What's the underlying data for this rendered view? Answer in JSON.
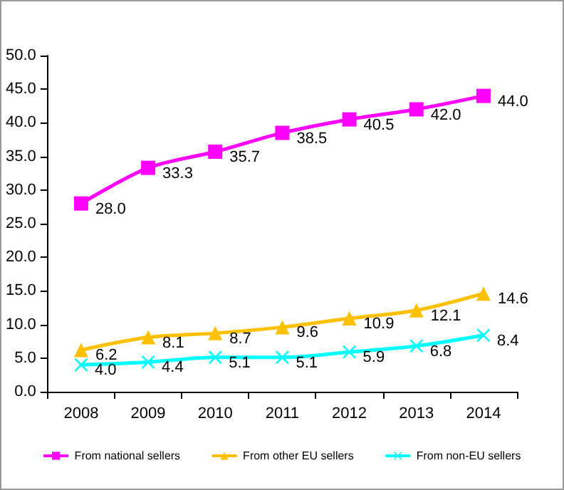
{
  "chart_data": {
    "type": "line",
    "categories": [
      "2008",
      "2009",
      "2010",
      "2011",
      "2012",
      "2013",
      "2014"
    ],
    "series": [
      {
        "name": "From national sellers",
        "color": "#ff00ff",
        "marker": "square",
        "values": [
          28.0,
          33.3,
          35.7,
          38.5,
          40.5,
          42.0,
          44.0
        ],
        "value_labels": [
          "28.0",
          "33.3",
          "35.7",
          "38.5",
          "40.5",
          "42.0",
          "44.0"
        ]
      },
      {
        "name": "From other EU sellers",
        "color": "#ffc000",
        "marker": "triangle",
        "values": [
          6.2,
          8.1,
          8.7,
          9.6,
          10.9,
          12.1,
          14.6
        ],
        "value_labels": [
          "6.2",
          "8.1",
          "8.7",
          "9.6",
          "10.9",
          "12.1",
          "14.6"
        ]
      },
      {
        "name": "From non-EU sellers",
        "color": "#00ffff",
        "marker": "cross",
        "values": [
          4.0,
          4.4,
          5.1,
          5.1,
          5.9,
          6.8,
          8.4
        ],
        "value_labels": [
          "4.0",
          "4.4",
          "5.1",
          "5.1",
          "5.9",
          "6.8",
          "8.4"
        ]
      }
    ],
    "ylim": [
      0,
      50
    ],
    "yticks": [
      {
        "value": 0,
        "label": "0.0"
      },
      {
        "value": 5,
        "label": "5.0"
      },
      {
        "value": 10,
        "label": "10.0"
      },
      {
        "value": 15,
        "label": "15.0"
      },
      {
        "value": 20,
        "label": "20.0"
      },
      {
        "value": 25,
        "label": "25.0"
      },
      {
        "value": 30,
        "label": "30.0"
      },
      {
        "value": 35,
        "label": "35.0"
      },
      {
        "value": 40,
        "label": "40.0"
      },
      {
        "value": 45,
        "label": "45.0"
      },
      {
        "value": 50,
        "label": "50.0"
      }
    ],
    "grid": false,
    "legend": "bottom"
  }
}
